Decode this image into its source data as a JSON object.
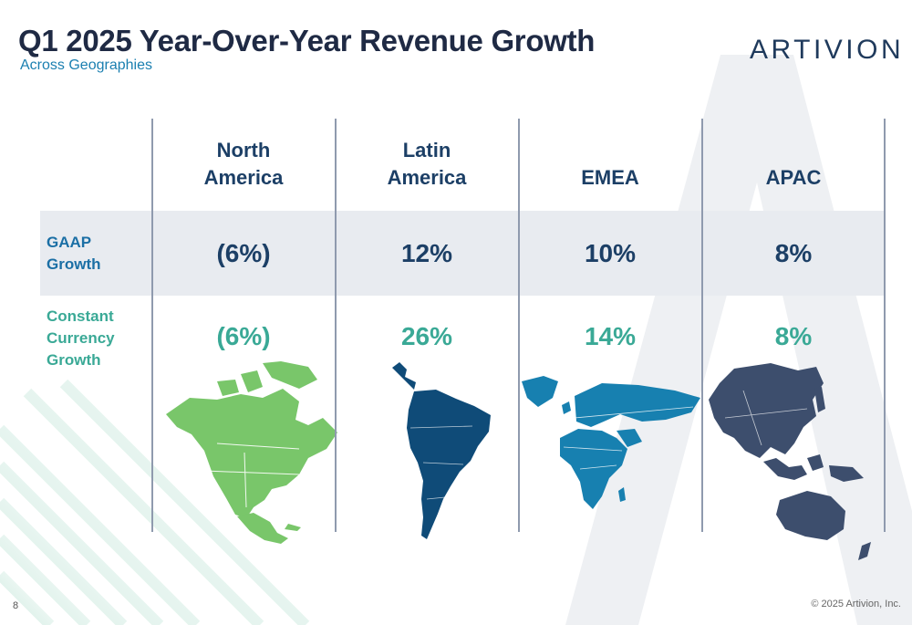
{
  "slide": {
    "title": "Q1 2025 Year-Over-Year Revenue Growth",
    "subtitle": "Across Geographies",
    "logo_text": "ARTIVION",
    "page_number": "8",
    "copyright": "© 2025 Artivion, Inc."
  },
  "table": {
    "columns": [
      {
        "line1": "North",
        "line2": "America"
      },
      {
        "line1": "Latin",
        "line2": "America"
      },
      {
        "line1": "",
        "line2": "EMEA"
      },
      {
        "line1": "",
        "line2": "APAC"
      }
    ],
    "rows": [
      {
        "label_line1": "GAAP",
        "label_line2": "Growth",
        "label_line3": "",
        "values": [
          "(6%)",
          "12%",
          "10%",
          "8%"
        ]
      },
      {
        "label_line1": "Constant",
        "label_line2": "Currency",
        "label_line3": "Growth",
        "values": [
          "(6%)",
          "26%",
          "14%",
          "8%"
        ]
      }
    ]
  },
  "maps": [
    {
      "region": "north-america-map",
      "color": "#79c66a"
    },
    {
      "region": "latin-america-map",
      "color": "#0f4b78"
    },
    {
      "region": "emea-map",
      "color": "#1780b0"
    },
    {
      "region": "apac-map",
      "color": "#3d4e6d"
    }
  ],
  "colors": {
    "title": "#1f2a44",
    "accent_blue": "#1a7fb0",
    "teal": "#3aa996",
    "band": "#e8ebf0"
  }
}
